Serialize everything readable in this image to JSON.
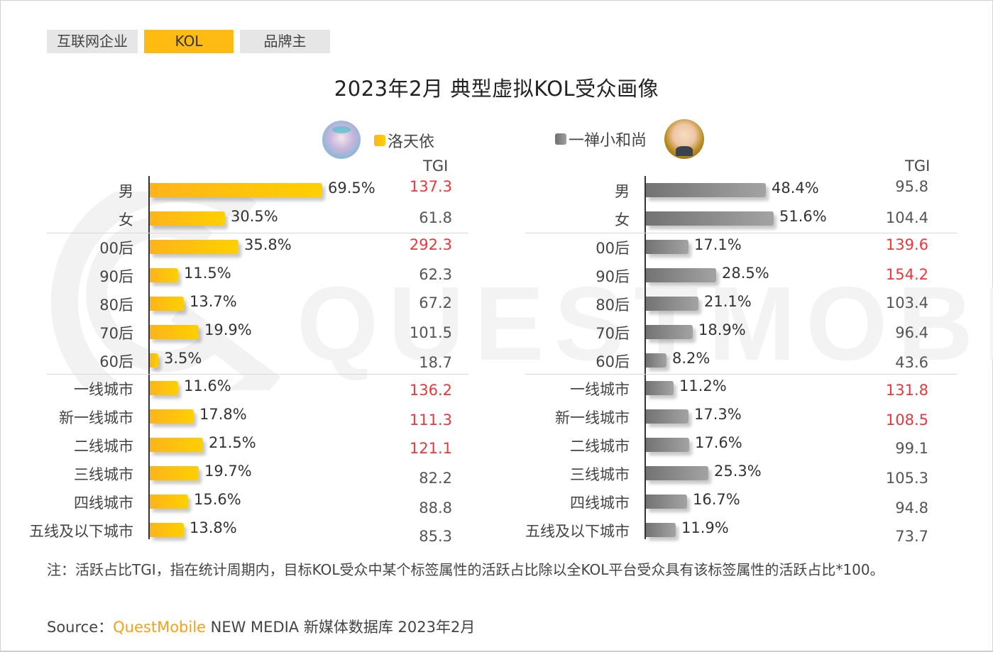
{
  "tabs": [
    {
      "label": "互联网企业",
      "active": false
    },
    {
      "label": "KOL",
      "active": true
    },
    {
      "label": "品牌主",
      "active": false
    }
  ],
  "title": "2023年2月 典型虚拟KOL受众画像",
  "watermark": "QUESTMOBILE",
  "colors": {
    "accent_yellow": "#ffbb11",
    "bar_yellow_start": "#ffb41a",
    "bar_yellow_end": "#ffd000",
    "bar_gray_start": "#737373",
    "bar_gray_end": "#a3a3a3",
    "tgi_highlight": "#e8383d",
    "brand_orange": "#f6a11c"
  },
  "panels": [
    {
      "kol": "洛天依",
      "avatar": "luotianyi-avatar",
      "tgi_header": "TGI",
      "rows": [
        {
          "label": "男",
          "value": "69.5%",
          "pct": 69.5,
          "tgi": "137.3",
          "hi": true
        },
        {
          "label": "女",
          "value": "30.5%",
          "pct": 30.5,
          "tgi": "61.8",
          "hi": false
        },
        {
          "label": "00后",
          "value": "35.8%",
          "pct": 35.8,
          "tgi": "292.3",
          "hi": true
        },
        {
          "label": "90后",
          "value": "11.5%",
          "pct": 11.5,
          "tgi": "62.3",
          "hi": false
        },
        {
          "label": "80后",
          "value": "13.7%",
          "pct": 13.7,
          "tgi": "67.2",
          "hi": false
        },
        {
          "label": "70后",
          "value": "19.9%",
          "pct": 19.9,
          "tgi": "101.5",
          "hi": false
        },
        {
          "label": "60后",
          "value": "3.5%",
          "pct": 3.5,
          "tgi": "18.7",
          "hi": false
        },
        {
          "label": "一线城市",
          "value": "11.6%",
          "pct": 11.6,
          "tgi": "136.2",
          "hi": true
        },
        {
          "label": "新一线城市",
          "value": "17.8%",
          "pct": 17.8,
          "tgi": "111.3",
          "hi": true
        },
        {
          "label": "二线城市",
          "value": "21.5%",
          "pct": 21.5,
          "tgi": "121.1",
          "hi": true
        },
        {
          "label": "三线城市",
          "value": "19.7%",
          "pct": 19.7,
          "tgi": "82.2",
          "hi": false
        },
        {
          "label": "四线城市",
          "value": "15.6%",
          "pct": 15.6,
          "tgi": "88.8",
          "hi": false
        },
        {
          "label": "五线及以下城市",
          "value": "13.8%",
          "pct": 13.8,
          "tgi": "85.3",
          "hi": false
        }
      ]
    },
    {
      "kol": "一禅小和尚",
      "avatar": "yichan-monk-avatar",
      "tgi_header": "TGI",
      "rows": [
        {
          "label": "男",
          "value": "48.4%",
          "pct": 48.4,
          "tgi": "95.8",
          "hi": false
        },
        {
          "label": "女",
          "value": "51.6%",
          "pct": 51.6,
          "tgi": "104.4",
          "hi": false
        },
        {
          "label": "00后",
          "value": "17.1%",
          "pct": 17.1,
          "tgi": "139.6",
          "hi": true
        },
        {
          "label": "90后",
          "value": "28.5%",
          "pct": 28.5,
          "tgi": "154.2",
          "hi": true
        },
        {
          "label": "80后",
          "value": "21.1%",
          "pct": 21.1,
          "tgi": "103.4",
          "hi": false
        },
        {
          "label": "70后",
          "value": "18.9%",
          "pct": 18.9,
          "tgi": "96.4",
          "hi": false
        },
        {
          "label": "60后",
          "value": "8.2%",
          "pct": 8.2,
          "tgi": "43.6",
          "hi": false
        },
        {
          "label": "一线城市",
          "value": "11.2%",
          "pct": 11.2,
          "tgi": "131.8",
          "hi": true
        },
        {
          "label": "新一线城市",
          "value": "17.3%",
          "pct": 17.3,
          "tgi": "108.5",
          "hi": true
        },
        {
          "label": "二线城市",
          "value": "17.6%",
          "pct": 17.6,
          "tgi": "99.1",
          "hi": false
        },
        {
          "label": "三线城市",
          "value": "25.3%",
          "pct": 25.3,
          "tgi": "105.3",
          "hi": false
        },
        {
          "label": "四线城市",
          "value": "16.7%",
          "pct": 16.7,
          "tgi": "94.8",
          "hi": false
        },
        {
          "label": "五线及以下城市",
          "value": "11.9%",
          "pct": 11.9,
          "tgi": "73.7",
          "hi": false
        }
      ]
    }
  ],
  "note": "注：活跃占比TGI，指在统计周期内，目标KOL受众中某个标签属性的活跃占比除以全KOL平台受众具有该标签属性的活跃占比*100。",
  "source": {
    "prefix": "Source：",
    "brand": "QuestMobile",
    "rest": " NEW MEDIA 新媒体数据库 2023年2月"
  },
  "chart_data": [
    {
      "type": "bar",
      "orientation": "horizontal",
      "title": "2023年2月 典型虚拟KOL受众画像 — 洛天依",
      "categories": [
        "男",
        "女",
        "00后",
        "90后",
        "80后",
        "70后",
        "60后",
        "一线城市",
        "新一线城市",
        "二线城市",
        "三线城市",
        "四线城市",
        "五线及以下城市"
      ],
      "series": [
        {
          "name": "洛天依 活跃占比(%)",
          "values": [
            69.5,
            30.5,
            35.8,
            11.5,
            13.7,
            19.9,
            3.5,
            11.6,
            17.8,
            21.5,
            19.7,
            15.6,
            13.8
          ]
        },
        {
          "name": "TGI",
          "values": [
            137.3,
            61.8,
            292.3,
            62.3,
            67.2,
            101.5,
            18.7,
            136.2,
            111.3,
            121.1,
            82.2,
            88.8,
            85.3
          ]
        }
      ],
      "groups": [
        [
          "男",
          "女"
        ],
        [
          "00后",
          "90后",
          "80后",
          "70后",
          "60后"
        ],
        [
          "一线城市",
          "新一线城市",
          "二线城市",
          "三线城市",
          "四线城市",
          "五线及以下城市"
        ]
      ],
      "legend": [
        "洛天依"
      ],
      "xlabel": "",
      "ylabel": "",
      "grid": false
    },
    {
      "type": "bar",
      "orientation": "horizontal",
      "title": "2023年2月 典型虚拟KOL受众画像 — 一禅小和尚",
      "categories": [
        "男",
        "女",
        "00后",
        "90后",
        "80后",
        "70后",
        "60后",
        "一线城市",
        "新一线城市",
        "二线城市",
        "三线城市",
        "四线城市",
        "五线及以下城市"
      ],
      "series": [
        {
          "name": "一禅小和尚 活跃占比(%)",
          "values": [
            48.4,
            51.6,
            17.1,
            28.5,
            21.1,
            18.9,
            8.2,
            11.2,
            17.3,
            17.6,
            25.3,
            16.7,
            11.9
          ]
        },
        {
          "name": "TGI",
          "values": [
            95.8,
            104.4,
            139.6,
            154.2,
            103.4,
            96.4,
            43.6,
            131.8,
            108.5,
            99.1,
            105.3,
            94.8,
            73.7
          ]
        }
      ],
      "groups": [
        [
          "男",
          "女"
        ],
        [
          "00后",
          "90后",
          "80后",
          "70后",
          "60后"
        ],
        [
          "一线城市",
          "新一线城市",
          "二线城市",
          "三线城市",
          "四线城市",
          "五线及以下城市"
        ]
      ],
      "legend": [
        "一禅小和尚"
      ],
      "xlabel": "",
      "ylabel": "",
      "grid": false
    }
  ]
}
